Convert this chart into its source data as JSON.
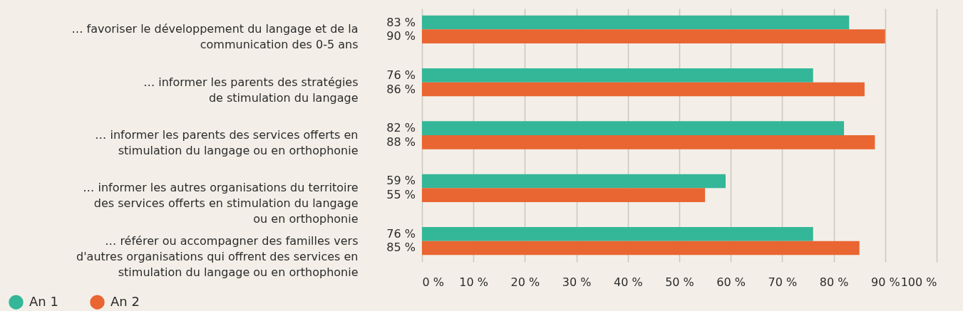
{
  "chart_data": {
    "type": "bar",
    "orientation": "horizontal",
    "categories": [
      "… favoriser le développement du langage et de la\ncommunication des 0-5 ans",
      "… informer les parents des stratégies\nde stimulation du langage",
      "… informer les parents des services offerts en\nstimulation du langage ou en orthophonie",
      "… informer les autres organisations du territoire\ndes services offerts en stimulation du langage\nou en orthophonie",
      "… référer ou accompagner des familles vers\nd'autres organisations qui offrent des services en\nstimulation du langage ou en orthophonie"
    ],
    "series": [
      {
        "name": "An 1",
        "color": "#34b798",
        "values": [
          83,
          76,
          82,
          59,
          76
        ],
        "value_labels": [
          "83 %",
          "76 %",
          "82 %",
          "59 %",
          "76 %"
        ]
      },
      {
        "name": "An 2",
        "color": "#e96531",
        "values": [
          90,
          86,
          88,
          55,
          85
        ],
        "value_labels": [
          "90 %",
          "86 %",
          "88 %",
          "55 %",
          "85 %"
        ]
      }
    ],
    "xlim": [
      0,
      100
    ],
    "xticks": [
      {
        "value": 0,
        "label": "0 %"
      },
      {
        "value": 10,
        "label": "10 %"
      },
      {
        "value": 20,
        "label": "20 %"
      },
      {
        "value": 30,
        "label": "30 %"
      },
      {
        "value": 40,
        "label": "40 %"
      },
      {
        "value": 50,
        "label": "50 %"
      },
      {
        "value": 60,
        "label": "60 %"
      },
      {
        "value": 70,
        "label": "70 %"
      },
      {
        "value": 80,
        "label": "80 %"
      },
      {
        "value": 90,
        "label": "90 %"
      },
      {
        "value": 100,
        "label": "100 %"
      }
    ],
    "grid": "x",
    "legend": "bottom left"
  }
}
